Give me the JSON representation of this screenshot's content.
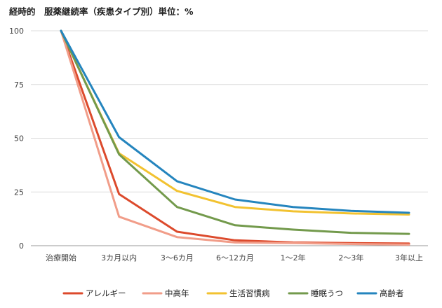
{
  "chart_data": {
    "type": "line",
    "title": "経時的　服薬継続率（疾患タイプ別）単位：%",
    "categories": [
      "治療開始",
      "3カ月以内",
      "3～6カ月",
      "6～12カ月",
      "1～2年",
      "2～3年",
      "3年以上"
    ],
    "ylim": [
      0,
      100
    ],
    "yticks": [
      0,
      25,
      50,
      75,
      100
    ],
    "grid": true,
    "legend_position": "bottom",
    "series": [
      {
        "name": "アレルギー",
        "color": "#dc4a2c",
        "values": [
          100,
          24,
          6.5,
          2.5,
          1.5,
          1.2,
          1.0
        ]
      },
      {
        "name": "中高年",
        "color": "#f19d89",
        "values": [
          100,
          13.5,
          4,
          1.5,
          1.2,
          0.8,
          0.5
        ]
      },
      {
        "name": "生活習慣病",
        "color": "#f2c230",
        "values": [
          100,
          43,
          25.5,
          18,
          16,
          15,
          14.5
        ]
      },
      {
        "name": "睡眠うつ",
        "color": "#739a4c",
        "values": [
          100,
          42.5,
          18,
          9.5,
          7.5,
          6,
          5.5
        ]
      },
      {
        "name": "高齢者",
        "color": "#2585be",
        "values": [
          100,
          50.5,
          30,
          21.5,
          18,
          16.2,
          15.3
        ]
      }
    ]
  }
}
